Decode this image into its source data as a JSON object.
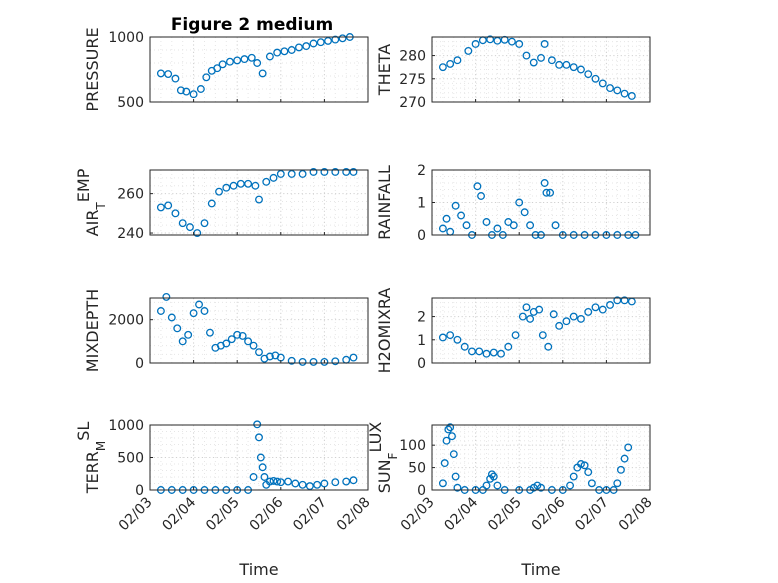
{
  "figure": {
    "title": "Figure 2 medium",
    "marker_color": "#0072BD",
    "grid": "major and minor dotted",
    "x_axis_label": "Time",
    "x_ticks": [
      "02/03",
      "02/04",
      "02/05",
      "02/06",
      "02/07",
      "02/08"
    ]
  },
  "chart_data": [
    {
      "type": "scatter",
      "ylabel": "PRESSURE",
      "ylim": [
        500,
        1000
      ],
      "yticks": [
        "500",
        "1000"
      ],
      "x": [
        "02/03 06:00",
        "02/03 10:00",
        "02/03 14:00",
        "02/03 17:00",
        "02/03 20:00",
        "02/04 00:00",
        "02/04 04:00",
        "02/04 07:00",
        "02/04 10:00",
        "02/04 13:00",
        "02/04 16:00",
        "02/04 20:00",
        "02/05 00:00",
        "02/05 04:00",
        "02/05 08:00",
        "02/05 11:00",
        "02/05 14:00",
        "02/05 18:00",
        "02/05 22:00",
        "02/06 02:00",
        "02/06 06:00",
        "02/06 10:00",
        "02/06 14:00",
        "02/06 18:00",
        "02/06 22:00",
        "02/07 02:00",
        "02/07 06:00",
        "02/07 10:00",
        "02/07 14:00"
      ],
      "y": [
        720,
        715,
        680,
        590,
        580,
        560,
        600,
        690,
        740,
        760,
        790,
        810,
        820,
        830,
        840,
        800,
        720,
        850,
        880,
        890,
        900,
        920,
        930,
        950,
        960,
        970,
        980,
        990,
        1000
      ]
    },
    {
      "type": "scatter",
      "ylabel": "THETA",
      "ylim": [
        270,
        284
      ],
      "yticks": [
        "270",
        "275",
        "280"
      ],
      "x": [
        "02/03 06:00",
        "02/03 10:00",
        "02/03 14:00",
        "02/03 20:00",
        "02/04 00:00",
        "02/04 04:00",
        "02/04 08:00",
        "02/04 12:00",
        "02/04 16:00",
        "02/04 20:00",
        "02/05 00:00",
        "02/05 04:00",
        "02/05 08:00",
        "02/05 12:00",
        "02/05 14:00",
        "02/05 18:00",
        "02/05 22:00",
        "02/06 02:00",
        "02/06 06:00",
        "02/06 10:00",
        "02/06 14:00",
        "02/06 18:00",
        "02/06 22:00",
        "02/07 02:00",
        "02/07 06:00",
        "02/07 10:00",
        "02/07 14:00"
      ],
      "y": [
        277.5,
        278.2,
        279,
        281,
        282.5,
        283.3,
        283.5,
        283.2,
        283.4,
        283,
        282.5,
        280,
        278.5,
        279.5,
        282.5,
        279,
        278,
        278,
        277.5,
        277,
        276,
        275,
        274,
        273,
        272.5,
        271.8,
        271.3
      ]
    },
    {
      "type": "scatter",
      "ylabel": "AIR_TEMP",
      "ylim": [
        239,
        272
      ],
      "yticks": [
        "240",
        "260"
      ],
      "x": [
        "02/03 06:00",
        "02/03 10:00",
        "02/03 14:00",
        "02/03 18:00",
        "02/03 22:00",
        "02/04 02:00",
        "02/04 06:00",
        "02/04 10:00",
        "02/04 14:00",
        "02/04 18:00",
        "02/04 22:00",
        "02/05 02:00",
        "02/05 06:00",
        "02/05 10:00",
        "02/05 12:00",
        "02/05 16:00",
        "02/05 20:00",
        "02/06 00:00",
        "02/06 06:00",
        "02/06 12:00",
        "02/06 18:00",
        "02/07 00:00",
        "02/07 06:00",
        "02/07 12:00",
        "02/07 16:00"
      ],
      "y": [
        253,
        254,
        250,
        245,
        243,
        240,
        245,
        255,
        261,
        263,
        264,
        265,
        265,
        264,
        257,
        266,
        268,
        270,
        270,
        270,
        271,
        271,
        271,
        271,
        271
      ]
    },
    {
      "type": "scatter",
      "ylabel": "RAINFALL",
      "ylim": [
        0,
        2
      ],
      "yticks": [
        "0",
        "1",
        "2"
      ],
      "x": [
        "02/03 06:00",
        "02/03 08:00",
        "02/03 10:00",
        "02/03 13:00",
        "02/03 16:00",
        "02/03 19:00",
        "02/03 22:00",
        "02/04 01:00",
        "02/04 03:00",
        "02/04 06:00",
        "02/04 09:00",
        "02/04 12:00",
        "02/04 15:00",
        "02/04 18:00",
        "02/04 21:00",
        "02/05 00:00",
        "02/05 03:00",
        "02/05 06:00",
        "02/05 09:00",
        "02/05 12:00",
        "02/05 14:00",
        "02/05 15:00",
        "02/05 17:00",
        "02/05 20:00",
        "02/06 00:00",
        "02/06 06:00",
        "02/06 12:00",
        "02/06 18:00",
        "02/07 00:00",
        "02/07 06:00",
        "02/07 12:00",
        "02/07 16:00"
      ],
      "y": [
        0.2,
        0.5,
        0.1,
        0.9,
        0.6,
        0.3,
        0,
        1.5,
        1.2,
        0.4,
        0,
        0.2,
        0,
        0.4,
        0.3,
        1.0,
        0.7,
        0.3,
        0,
        0,
        1.6,
        1.3,
        1.3,
        0.3,
        0,
        0,
        0,
        0,
        0,
        0,
        0,
        0
      ]
    },
    {
      "type": "scatter",
      "ylabel": "MIXDEPTH",
      "ylim": [
        0,
        3000
      ],
      "yticks": [
        "0",
        "2000"
      ],
      "x": [
        "02/03 06:00",
        "02/03 09:00",
        "02/03 12:00",
        "02/03 15:00",
        "02/03 18:00",
        "02/03 21:00",
        "02/04 00:00",
        "02/04 03:00",
        "02/04 06:00",
        "02/04 09:00",
        "02/04 12:00",
        "02/04 15:00",
        "02/04 18:00",
        "02/04 21:00",
        "02/05 00:00",
        "02/05 03:00",
        "02/05 06:00",
        "02/05 09:00",
        "02/05 12:00",
        "02/05 15:00",
        "02/05 18:00",
        "02/05 21:00",
        "02/06 00:00",
        "02/06 06:00",
        "02/06 12:00",
        "02/06 18:00",
        "02/07 00:00",
        "02/07 06:00",
        "02/07 12:00",
        "02/07 16:00"
      ],
      "y": [
        2400,
        3050,
        2100,
        1600,
        1000,
        1300,
        2300,
        2700,
        2400,
        1400,
        700,
        800,
        900,
        1100,
        1300,
        1250,
        1000,
        800,
        500,
        200,
        300,
        350,
        250,
        100,
        50,
        50,
        50,
        80,
        150,
        250
      ]
    },
    {
      "type": "scatter",
      "ylabel": "H2OMIXRA",
      "ylim": [
        0,
        2.8
      ],
      "yticks": [
        "0",
        "1",
        "2"
      ],
      "x": [
        "02/03 06:00",
        "02/03 10:00",
        "02/03 14:00",
        "02/03 18:00",
        "02/03 22:00",
        "02/04 02:00",
        "02/04 06:00",
        "02/04 10:00",
        "02/04 14:00",
        "02/04 18:00",
        "02/04 22:00",
        "02/05 02:00",
        "02/05 04:00",
        "02/05 06:00",
        "02/05 08:00",
        "02/05 11:00",
        "02/05 13:00",
        "02/05 16:00",
        "02/05 19:00",
        "02/05 22:00",
        "02/06 02:00",
        "02/06 06:00",
        "02/06 10:00",
        "02/06 14:00",
        "02/06 18:00",
        "02/06 22:00",
        "02/07 02:00",
        "02/07 06:00",
        "02/07 10:00",
        "02/07 14:00"
      ],
      "y": [
        1.1,
        1.2,
        1.0,
        0.7,
        0.5,
        0.5,
        0.4,
        0.45,
        0.4,
        0.7,
        1.2,
        2.0,
        2.4,
        1.9,
        2.2,
        2.3,
        1.2,
        0.7,
        2.1,
        1.6,
        1.8,
        2.0,
        1.9,
        2.2,
        2.4,
        2.3,
        2.5,
        2.7,
        2.7,
        2.65
      ]
    },
    {
      "type": "scatter",
      "ylabel": "TERR_MSL",
      "ylim": [
        0,
        1000
      ],
      "yticks": [
        "0",
        "500",
        "1000"
      ],
      "x": [
        "02/03 06:00",
        "02/03 12:00",
        "02/03 18:00",
        "02/04 00:00",
        "02/04 06:00",
        "02/04 12:00",
        "02/04 18:00",
        "02/05 00:00",
        "02/05 06:00",
        "02/05 09:00",
        "02/05 11:00",
        "02/05 12:00",
        "02/05 13:00",
        "02/05 14:00",
        "02/05 15:00",
        "02/05 16:00",
        "02/05 18:00",
        "02/05 20:00",
        "02/05 22:00",
        "02/06 00:00",
        "02/06 04:00",
        "02/06 08:00",
        "02/06 12:00",
        "02/06 16:00",
        "02/06 20:00",
        "02/07 00:00",
        "02/07 06:00",
        "02/07 12:00",
        "02/07 16:00"
      ],
      "y": [
        0,
        0,
        0,
        0,
        0,
        0,
        0,
        0,
        0,
        200,
        1010,
        810,
        500,
        350,
        200,
        80,
        130,
        140,
        130,
        120,
        130,
        100,
        80,
        60,
        80,
        100,
        120,
        130,
        150
      ]
    },
    {
      "type": "scatter",
      "ylabel": "SUN_FLUX",
      "ylim": [
        0,
        145
      ],
      "yticks": [
        "0",
        "50",
        "100"
      ],
      "x": [
        "02/03 06:00",
        "02/03 07:00",
        "02/03 08:00",
        "02/03 09:00",
        "02/03 10:00",
        "02/03 11:00",
        "02/03 12:00",
        "02/03 13:00",
        "02/03 14:00",
        "02/03 18:00",
        "02/04 00:00",
        "02/04 04:00",
        "02/04 06:00",
        "02/04 08:00",
        "02/04 09:00",
        "02/04 10:00",
        "02/04 12:00",
        "02/04 16:00",
        "02/05 00:00",
        "02/05 06:00",
        "02/05 08:00",
        "02/05 10:00",
        "02/05 12:00",
        "02/05 18:00",
        "02/06 00:00",
        "02/06 04:00",
        "02/06 06:00",
        "02/06 08:00",
        "02/06 10:00",
        "02/06 12:00",
        "02/06 14:00",
        "02/06 16:00",
        "02/06 20:00",
        "02/07 00:00",
        "02/07 04:00",
        "02/07 06:00",
        "02/07 08:00",
        "02/07 10:00",
        "02/07 12:00"
      ],
      "y": [
        15,
        60,
        110,
        135,
        140,
        120,
        80,
        30,
        5,
        0,
        0,
        0,
        10,
        25,
        35,
        30,
        10,
        0,
        0,
        0,
        5,
        10,
        5,
        0,
        0,
        10,
        30,
        50,
        58,
        55,
        40,
        15,
        0,
        0,
        0,
        15,
        45,
        70,
        95
      ]
    }
  ]
}
